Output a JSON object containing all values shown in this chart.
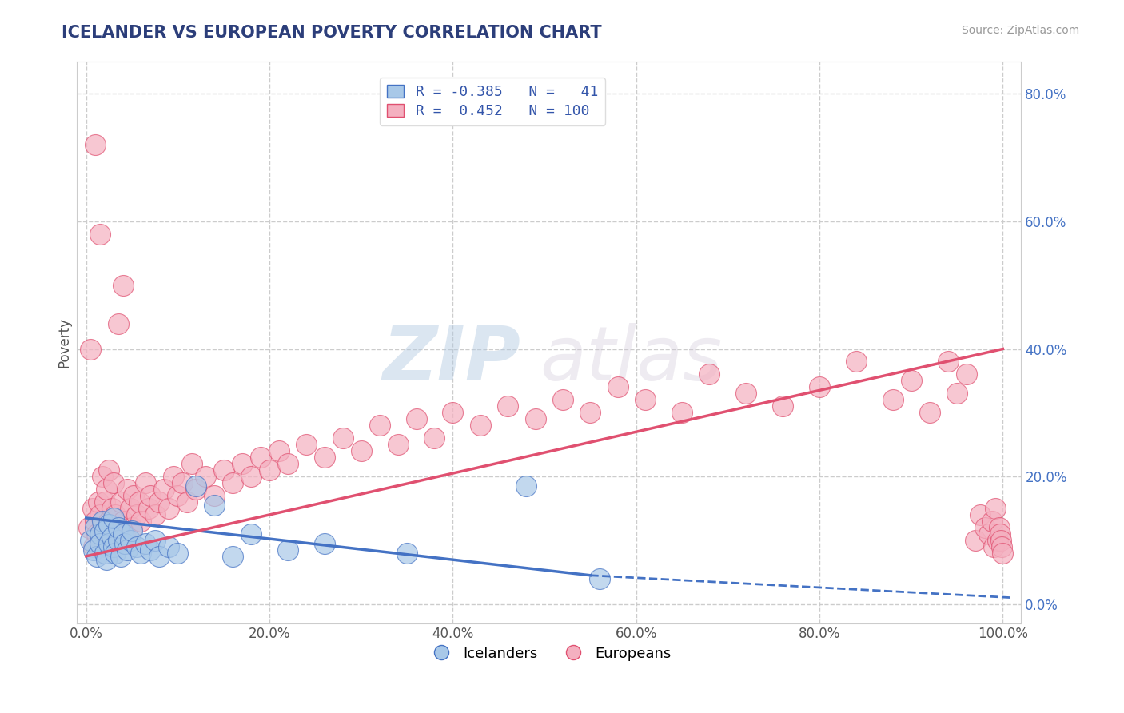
{
  "title": "ICELANDER VS EUROPEAN POVERTY CORRELATION CHART",
  "source_text": "Source: ZipAtlas.com",
  "ylabel": "Poverty",
  "xlim": [
    -0.01,
    1.02
  ],
  "ylim": [
    -0.03,
    0.85
  ],
  "xticks": [
    0.0,
    0.2,
    0.4,
    0.6,
    0.8,
    1.0
  ],
  "xticklabels": [
    "0.0%",
    "20.0%",
    "40.0%",
    "60.0%",
    "80.0%",
    "100.0%"
  ],
  "yticks": [
    0.0,
    0.2,
    0.4,
    0.6,
    0.8
  ],
  "yticklabels": [
    "0.0%",
    "20.0%",
    "40.0%",
    "60.0%",
    "80.0%"
  ],
  "right_yticks": [
    0.0,
    0.2,
    0.4,
    0.6,
    0.8
  ],
  "right_yticklabels": [
    "0.0%",
    "20.0%",
    "40.0%",
    "60.0%",
    "80.0%"
  ],
  "background_color": "#ffffff",
  "grid_color": "#cccccc",
  "title_color": "#2c3e7a",
  "icelander_color": "#a8c8e8",
  "european_color": "#f4b0c0",
  "icelander_line_color": "#4472c4",
  "european_line_color": "#e05070",
  "legend_r_icelander": "R = -0.385",
  "legend_n_icelander": "N =   41",
  "legend_r_european": "R =  0.452",
  "legend_n_european": "N = 100",
  "watermark": "ZIPatlas",
  "icelander_R": -0.385,
  "european_R": 0.452,
  "ice_line_x0": 0.0,
  "ice_line_x_solid_end": 0.55,
  "ice_line_x_dash_end": 1.01,
  "ice_line_y0": 0.135,
  "ice_line_y_solid_end": 0.045,
  "ice_line_y_dash_end": 0.01,
  "eur_line_x0": 0.0,
  "eur_line_x1": 1.0,
  "eur_line_y0": 0.075,
  "eur_line_y1": 0.4,
  "icelander_scatter_x": [
    0.005,
    0.008,
    0.01,
    0.012,
    0.015,
    0.015,
    0.018,
    0.02,
    0.02,
    0.022,
    0.025,
    0.025,
    0.028,
    0.03,
    0.03,
    0.032,
    0.035,
    0.035,
    0.038,
    0.04,
    0.042,
    0.045,
    0.048,
    0.05,
    0.055,
    0.06,
    0.065,
    0.07,
    0.075,
    0.08,
    0.09,
    0.1,
    0.12,
    0.14,
    0.16,
    0.18,
    0.22,
    0.26,
    0.35,
    0.48,
    0.56
  ],
  "icelander_scatter_y": [
    0.1,
    0.085,
    0.12,
    0.075,
    0.11,
    0.095,
    0.13,
    0.08,
    0.115,
    0.07,
    0.125,
    0.095,
    0.105,
    0.09,
    0.135,
    0.08,
    0.1,
    0.12,
    0.075,
    0.11,
    0.095,
    0.085,
    0.1,
    0.115,
    0.09,
    0.08,
    0.095,
    0.085,
    0.1,
    0.075,
    0.09,
    0.08,
    0.185,
    0.155,
    0.075,
    0.11,
    0.085,
    0.095,
    0.08,
    0.185,
    0.04
  ],
  "european_scatter_x": [
    0.003,
    0.005,
    0.007,
    0.008,
    0.01,
    0.01,
    0.012,
    0.013,
    0.015,
    0.015,
    0.016,
    0.018,
    0.018,
    0.02,
    0.02,
    0.022,
    0.022,
    0.025,
    0.025,
    0.028,
    0.03,
    0.03,
    0.032,
    0.035,
    0.035,
    0.038,
    0.04,
    0.04,
    0.042,
    0.045,
    0.048,
    0.05,
    0.052,
    0.055,
    0.058,
    0.06,
    0.065,
    0.068,
    0.07,
    0.075,
    0.08,
    0.085,
    0.09,
    0.095,
    0.1,
    0.105,
    0.11,
    0.115,
    0.12,
    0.13,
    0.14,
    0.15,
    0.16,
    0.17,
    0.18,
    0.19,
    0.2,
    0.21,
    0.22,
    0.24,
    0.26,
    0.28,
    0.3,
    0.32,
    0.34,
    0.36,
    0.38,
    0.4,
    0.43,
    0.46,
    0.49,
    0.52,
    0.55,
    0.58,
    0.61,
    0.65,
    0.68,
    0.72,
    0.76,
    0.8,
    0.84,
    0.88,
    0.9,
    0.92,
    0.94,
    0.95,
    0.96,
    0.97,
    0.975,
    0.98,
    0.985,
    0.988,
    0.99,
    0.992,
    0.994,
    0.996,
    0.997,
    0.998,
    0.999,
    1.0
  ],
  "european_scatter_y": [
    0.12,
    0.4,
    0.15,
    0.09,
    0.13,
    0.72,
    0.11,
    0.16,
    0.14,
    0.58,
    0.1,
    0.12,
    0.2,
    0.09,
    0.16,
    0.18,
    0.11,
    0.13,
    0.21,
    0.15,
    0.1,
    0.19,
    0.14,
    0.12,
    0.44,
    0.16,
    0.13,
    0.5,
    0.11,
    0.18,
    0.15,
    0.12,
    0.17,
    0.14,
    0.16,
    0.13,
    0.19,
    0.15,
    0.17,
    0.14,
    0.16,
    0.18,
    0.15,
    0.2,
    0.17,
    0.19,
    0.16,
    0.22,
    0.18,
    0.2,
    0.17,
    0.21,
    0.19,
    0.22,
    0.2,
    0.23,
    0.21,
    0.24,
    0.22,
    0.25,
    0.23,
    0.26,
    0.24,
    0.28,
    0.25,
    0.29,
    0.26,
    0.3,
    0.28,
    0.31,
    0.29,
    0.32,
    0.3,
    0.34,
    0.32,
    0.3,
    0.36,
    0.33,
    0.31,
    0.34,
    0.38,
    0.32,
    0.35,
    0.3,
    0.38,
    0.33,
    0.36,
    0.1,
    0.14,
    0.12,
    0.11,
    0.13,
    0.09,
    0.15,
    0.1,
    0.12,
    0.11,
    0.1,
    0.09,
    0.08
  ]
}
